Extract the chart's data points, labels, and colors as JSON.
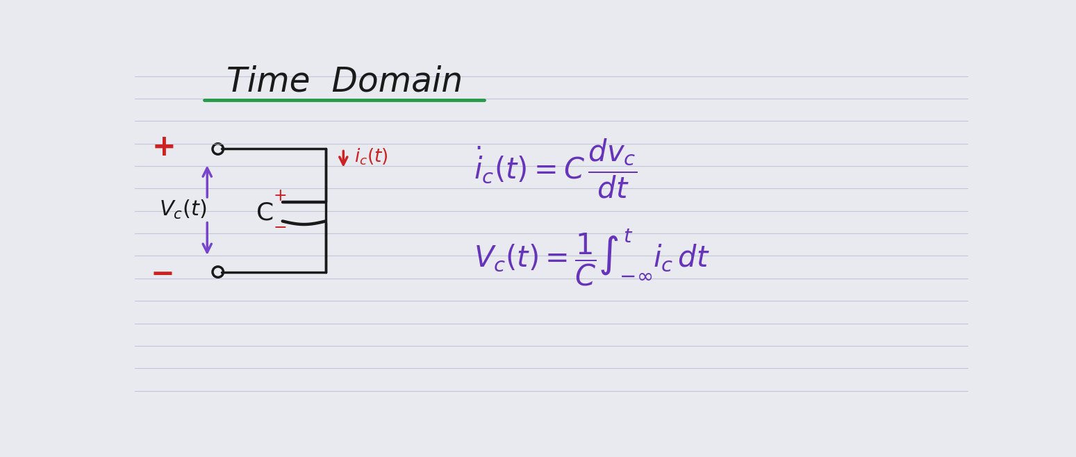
{
  "bg_color": "#e8eaf0",
  "notebook_line_color": "#b8bcd0",
  "title_color": "#1a1a1a",
  "title_underline_color": "#2a9a4a",
  "circuit_color": "#1a1a1a",
  "red_color": "#cc2222",
  "purple_color": "#7744cc",
  "eq_color": "#6633bb",
  "fig_width": 15.49,
  "fig_height": 6.58
}
